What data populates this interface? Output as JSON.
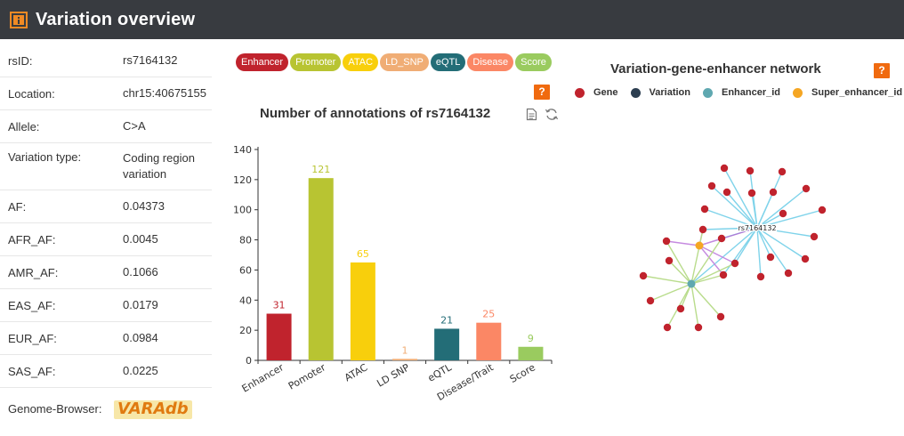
{
  "header": {
    "title": "Variation overview"
  },
  "info": [
    {
      "label": "rsID:",
      "value": "rs7164132"
    },
    {
      "label": "Location:",
      "value": "chr15:40675155"
    },
    {
      "label": "Allele:",
      "value": "C>A"
    },
    {
      "label": "Variation type:",
      "value": "Coding region variation"
    },
    {
      "label": "AF:",
      "value": "0.04373"
    },
    {
      "label": "AFR_AF:",
      "value": "0.0045"
    },
    {
      "label": "AMR_AF:",
      "value": "0.1066"
    },
    {
      "label": "EAS_AF:",
      "value": "0.0179"
    },
    {
      "label": "EUR_AF:",
      "value": "0.0984"
    },
    {
      "label": "SAS_AF:",
      "value": "0.0225"
    },
    {
      "label": "Genome-Browser:",
      "value": "VARAdb"
    }
  ],
  "badges": [
    {
      "label": "Enhancer",
      "color": "#c0232d"
    },
    {
      "label": "Promoter",
      "color": "#b8c432"
    },
    {
      "label": "ATAC",
      "color": "#f8cf0c"
    },
    {
      "label": "LD_SNP",
      "color": "#f0ad75"
    },
    {
      "label": "eQTL",
      "color": "#236d77"
    },
    {
      "label": "Disease",
      "color": "#fb8765"
    },
    {
      "label": "Score",
      "color": "#9acb5f"
    }
  ],
  "chart_data": {
    "type": "bar",
    "title": "Number of annotations of rs7164132",
    "categories": [
      "Enhancer",
      "Pomoter",
      "ATAC",
      "LD SNP",
      "eQTL",
      "Disease/Trait",
      "Score"
    ],
    "values": [
      31,
      121,
      65,
      1,
      21,
      25,
      9
    ],
    "colors": [
      "#c0232d",
      "#b8c432",
      "#f8cf0c",
      "#f0ad75",
      "#236d77",
      "#fb8765",
      "#9acb5f"
    ],
    "ylim": [
      0,
      140
    ],
    "yticks": [
      0,
      20,
      40,
      60,
      80,
      100,
      120,
      140
    ],
    "grid": false
  },
  "network": {
    "title": "Variation-gene-enhancer network",
    "legend": [
      {
        "label": "Gene",
        "color": "#c0232d"
      },
      {
        "label": "Variation",
        "color": "#2c3e50"
      },
      {
        "label": "Enhancer_id",
        "color": "#5fa8b0"
      },
      {
        "label": "Super_enhancer_id",
        "color": "#f5a623"
      }
    ],
    "center_label": "rs7164132"
  },
  "icons": {
    "help": "help-icon",
    "data_view": "data-view-icon",
    "refresh": "refresh-icon"
  }
}
